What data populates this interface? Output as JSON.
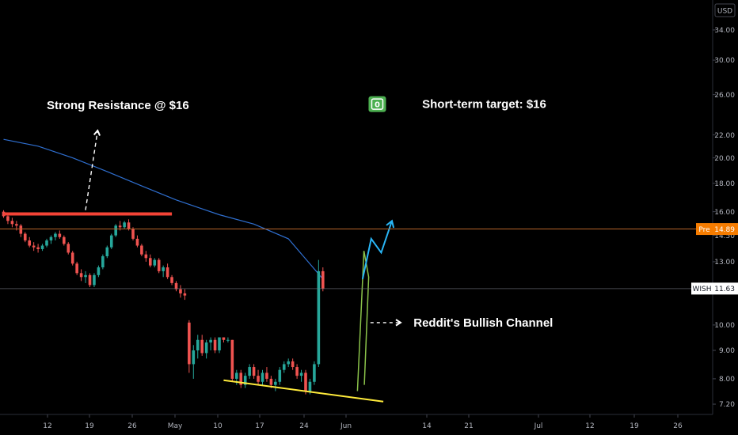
{
  "chart_data": {
    "type": "candlestick",
    "currency": "USD",
    "y_scale": "log",
    "ylim": [
      6.9,
      38.5
    ],
    "y_ticks": [
      "34.00",
      "30.00",
      "26.00",
      "22.00",
      "20.00",
      "18.00",
      "16.00",
      "14.50",
      "13.00",
      "10.00",
      "9.00",
      "8.00",
      "7.20"
    ],
    "x_ticks": [
      "12",
      "19",
      "26",
      "May",
      "10",
      "17",
      "24",
      "Jun",
      "14",
      "21",
      "Jul",
      "12",
      "19",
      "26"
    ],
    "grid": false,
    "colors": {
      "up": "#26a69a",
      "down": "#ef5350",
      "ma": "#2f6fd0",
      "resistance": "#f44336",
      "support": "#ffeb3b",
      "channel": "#8bc34a",
      "arrow": "#29b6f6",
      "pre_badge": "#f57c00",
      "pre_line": "#b8642a",
      "target_icon": "#4caf50"
    },
    "candles": [
      [
        16.0,
        16.1,
        15.6,
        15.7
      ],
      [
        15.7,
        15.8,
        15.2,
        15.4
      ],
      [
        15.4,
        15.6,
        15.0,
        15.2
      ],
      [
        15.2,
        15.4,
        14.8,
        15.1
      ],
      [
        15.1,
        15.2,
        14.4,
        14.6
      ],
      [
        14.6,
        14.7,
        14.1,
        14.2
      ],
      [
        14.2,
        14.4,
        13.8,
        13.9
      ],
      [
        13.9,
        14.1,
        13.6,
        13.8
      ],
      [
        13.8,
        14.0,
        13.5,
        13.7
      ],
      [
        13.7,
        14.0,
        13.6,
        13.9
      ],
      [
        13.9,
        14.3,
        13.8,
        14.2
      ],
      [
        14.2,
        14.5,
        14.0,
        14.4
      ],
      [
        14.4,
        14.7,
        14.2,
        14.6
      ],
      [
        14.6,
        14.8,
        14.3,
        14.4
      ],
      [
        14.4,
        14.5,
        13.9,
        14.0
      ],
      [
        14.0,
        14.1,
        13.4,
        13.5
      ],
      [
        13.5,
        13.6,
        12.8,
        12.9
      ],
      [
        12.9,
        13.0,
        12.3,
        12.4
      ],
      [
        12.4,
        12.6,
        12.0,
        12.2
      ],
      [
        12.2,
        12.5,
        11.9,
        12.3
      ],
      [
        12.3,
        12.4,
        11.7,
        11.8
      ],
      [
        11.8,
        12.4,
        11.7,
        12.3
      ],
      [
        12.3,
        12.8,
        12.2,
        12.7
      ],
      [
        12.7,
        13.4,
        12.6,
        13.3
      ],
      [
        13.3,
        13.9,
        13.2,
        13.8
      ],
      [
        13.8,
        14.6,
        13.7,
        14.5
      ],
      [
        14.5,
        15.2,
        14.4,
        15.1
      ],
      [
        15.1,
        15.4,
        14.8,
        15.0
      ],
      [
        15.0,
        15.4,
        14.9,
        15.3
      ],
      [
        15.3,
        15.5,
        14.8,
        14.9
      ],
      [
        14.9,
        15.0,
        14.2,
        14.3
      ],
      [
        14.3,
        14.5,
        13.8,
        13.9
      ],
      [
        13.9,
        14.0,
        13.3,
        13.4
      ],
      [
        13.4,
        13.6,
        13.0,
        13.2
      ],
      [
        13.2,
        13.4,
        12.7,
        12.8
      ],
      [
        12.8,
        13.2,
        12.7,
        13.1
      ],
      [
        13.1,
        13.2,
        12.4,
        12.5
      ],
      [
        12.5,
        12.8,
        12.2,
        12.7
      ],
      [
        12.7,
        12.9,
        12.1,
        12.2
      ],
      [
        12.2,
        12.3,
        11.8,
        11.9
      ],
      [
        11.9,
        12.0,
        11.5,
        11.6
      ],
      [
        11.6,
        11.8,
        11.2,
        11.4
      ],
      [
        11.4,
        11.6,
        11.1,
        11.3
      ],
      [
        10.1,
        10.2,
        8.2,
        8.5
      ],
      [
        8.5,
        9.2,
        8.0,
        9.0
      ],
      [
        9.0,
        9.6,
        8.7,
        9.4
      ],
      [
        9.4,
        9.6,
        8.8,
        8.9
      ],
      [
        8.9,
        9.4,
        8.7,
        9.3
      ],
      [
        9.3,
        9.5,
        9.0,
        9.4
      ],
      [
        9.4,
        9.5,
        8.9,
        9.0
      ],
      [
        9.0,
        9.5,
        8.9,
        9.5
      ],
      [
        9.5,
        9.5,
        9.3,
        9.4
      ],
      [
        9.4,
        9.5,
        9.3,
        9.4
      ],
      [
        9.4,
        9.4,
        7.9,
        8.0
      ],
      [
        8.0,
        8.3,
        7.8,
        8.2
      ],
      [
        8.2,
        8.3,
        7.7,
        7.8
      ],
      [
        7.8,
        8.2,
        7.7,
        8.1
      ],
      [
        8.1,
        8.5,
        8.0,
        8.4
      ],
      [
        8.4,
        8.5,
        8.0,
        8.1
      ],
      [
        8.1,
        8.3,
        7.8,
        7.9
      ],
      [
        7.9,
        8.3,
        7.8,
        8.2
      ],
      [
        8.2,
        8.4,
        7.9,
        8.0
      ],
      [
        8.0,
        8.1,
        7.7,
        7.8
      ],
      [
        7.8,
        8.0,
        7.6,
        7.9
      ],
      [
        7.9,
        8.4,
        7.8,
        8.3
      ],
      [
        8.3,
        8.6,
        8.2,
        8.5
      ],
      [
        8.5,
        8.7,
        8.4,
        8.6
      ],
      [
        8.6,
        8.7,
        8.3,
        8.4
      ],
      [
        8.4,
        8.5,
        8.0,
        8.1
      ],
      [
        8.1,
        8.3,
        7.9,
        8.2
      ],
      [
        8.2,
        8.3,
        7.5,
        7.6
      ],
      [
        7.6,
        8.0,
        7.5,
        7.9
      ],
      [
        7.9,
        8.6,
        7.8,
        8.5
      ],
      [
        8.5,
        13.1,
        8.4,
        12.5
      ],
      [
        12.5,
        12.7,
        11.5,
        11.63
      ]
    ],
    "moving_average": [
      [
        0,
        21.6
      ],
      [
        8,
        21.0
      ],
      [
        16,
        20.0
      ],
      [
        24,
        18.9
      ],
      [
        32,
        17.8
      ],
      [
        40,
        16.8
      ],
      [
        50,
        15.8
      ],
      [
        58,
        15.2
      ],
      [
        66,
        14.3
      ],
      [
        74,
        12.1
      ]
    ],
    "drawings": {
      "resistance": [
        [
          0,
          15.85
        ],
        [
          39,
          15.85
        ]
      ],
      "support": [
        [
          51,
          7.95
        ],
        [
          88,
          7.28
        ]
      ],
      "channel": [
        [
          82,
          7.6
        ],
        [
          83.5,
          13.6
        ],
        [
          84.6,
          12.2
        ],
        [
          83.6,
          7.8
        ]
      ],
      "projection": [
        [
          83.2,
          12.1
        ],
        [
          85.2,
          14.3
        ],
        [
          87.5,
          13.5
        ],
        [
          90,
          15.4
        ]
      ],
      "strong_dashed": [
        [
          19,
          16.1
        ],
        [
          21.8,
          22.4
        ]
      ],
      "bullish_dashed": [
        [
          85,
          10.1
        ],
        [
          92,
          10.1
        ]
      ]
    },
    "annotations": [
      {
        "text": "Strong Resistance @ $16",
        "x": 10,
        "y": 24.9
      },
      {
        "text": "Short-term target: $16",
        "x": 97,
        "y": 25.0
      },
      {
        "text": "Reddit's Bullish Channel",
        "x": 95,
        "y": 10.1
      }
    ],
    "target_icon": {
      "text": "0",
      "x": 86.6,
      "y": 25.0
    },
    "price_labels": [
      {
        "name": "Pre",
        "value": "14.89",
        "price": 14.89
      },
      {
        "name": "WISH",
        "value": "11.63",
        "price": 11.63
      }
    ]
  }
}
